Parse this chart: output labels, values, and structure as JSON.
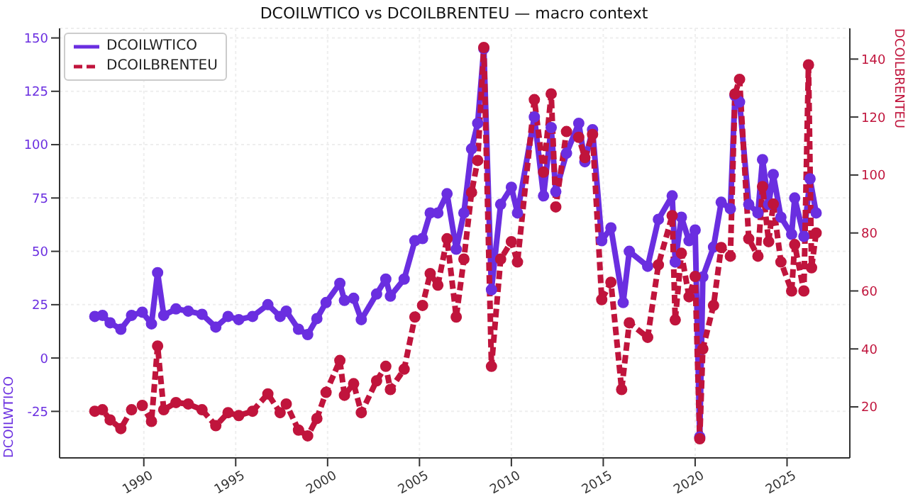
{
  "chart_data": {
    "type": "line",
    "title": "DCOILWTICO vs DCOILBRENTEU — macro context",
    "ylabel": "DCOILWTICO",
    "y2label": "DCOILBRENTEU",
    "xlim": [
      "1985-06",
      "2028-06"
    ],
    "xticks": [
      "1990",
      "1995",
      "2000",
      "2005",
      "2010",
      "2015",
      "2020",
      "2025"
    ],
    "ylim": [
      -46.8,
      154.5
    ],
    "yticks": [
      -25,
      0,
      25,
      50,
      75,
      100,
      125,
      150
    ],
    "y2lim": [
      2.4,
      150.6
    ],
    "y2ticks": [
      20,
      40,
      60,
      80,
      100,
      120,
      140
    ],
    "grid": true,
    "legend": "top left",
    "marker": "circle",
    "series": [
      {
        "name": "DCOILWTICO",
        "color": "#6a2ee0",
        "line_style": "solid",
        "x": [
          "1987-05",
          "1987-10",
          "1988-03",
          "1988-10",
          "1989-05",
          "1989-12",
          "1990-06",
          "1990-10",
          "1991-02",
          "1991-10",
          "1992-06",
          "1993-03",
          "1993-12",
          "1994-08",
          "1995-03",
          "1995-12",
          "1996-10",
          "1997-06",
          "1997-10",
          "1998-06",
          "1998-12",
          "1999-06",
          "1999-12",
          "2000-09",
          "2000-12",
          "2001-06",
          "2001-11",
          "2002-09",
          "2003-03",
          "2003-06",
          "2004-03",
          "2004-10",
          "2005-03",
          "2005-08",
          "2006-01",
          "2006-07",
          "2007-01",
          "2007-06",
          "2007-11",
          "2008-03",
          "2008-07",
          "2008-12",
          "2009-06",
          "2010-01",
          "2010-05",
          "2011-04",
          "2011-10",
          "2012-03",
          "2012-06",
          "2013-01",
          "2013-09",
          "2014-01",
          "2014-06",
          "2014-12",
          "2015-06",
          "2016-02",
          "2016-06",
          "2017-06",
          "2018-01",
          "2018-10",
          "2018-12",
          "2019-04",
          "2019-09",
          "2020-01",
          "2020-04",
          "2020-06",
          "2021-01",
          "2021-06",
          "2021-12",
          "2022-03",
          "2022-06",
          "2022-12",
          "2023-06",
          "2023-09",
          "2024-01",
          "2024-04",
          "2024-09",
          "2025-04",
          "2025-06",
          "2025-12",
          "2026-04",
          "2026-08"
        ],
        "values": [
          19.5,
          20,
          16.5,
          13.5,
          20,
          21.5,
          16,
          40,
          20,
          23,
          22,
          20.5,
          14.5,
          19.5,
          18,
          19.5,
          25,
          19.5,
          22,
          13.5,
          11,
          18.5,
          26,
          35,
          27,
          28,
          18,
          30,
          37,
          29,
          37,
          55,
          56,
          68,
          68,
          77,
          51,
          68,
          98,
          110,
          145,
          32,
          72,
          80,
          68,
          113,
          76,
          108,
          78,
          96,
          110,
          92,
          107,
          55,
          61,
          26,
          50,
          43,
          65,
          76,
          45,
          66,
          55,
          60,
          -37,
          38,
          52,
          73,
          70,
          123,
          120,
          72,
          68,
          93,
          72,
          86,
          66,
          58,
          75,
          57,
          84,
          68
        ]
      },
      {
        "name": "DCOILBRENTEU",
        "color": "#c0143c",
        "line_style": "dashed",
        "axis": "y2",
        "x": [
          "1987-05",
          "1987-10",
          "1988-03",
          "1988-10",
          "1989-05",
          "1989-12",
          "1990-06",
          "1990-10",
          "1991-02",
          "1991-10",
          "1992-06",
          "1993-03",
          "1993-12",
          "1994-08",
          "1995-03",
          "1995-12",
          "1996-10",
          "1997-06",
          "1997-10",
          "1998-06",
          "1998-12",
          "1999-06",
          "1999-12",
          "2000-09",
          "2000-12",
          "2001-06",
          "2001-11",
          "2002-09",
          "2003-03",
          "2003-06",
          "2004-03",
          "2004-10",
          "2005-03",
          "2005-08",
          "2006-01",
          "2006-07",
          "2007-01",
          "2007-06",
          "2007-11",
          "2008-03",
          "2008-07",
          "2008-12",
          "2009-06",
          "2010-01",
          "2010-05",
          "2011-04",
          "2011-10",
          "2012-03",
          "2012-06",
          "2013-01",
          "2013-09",
          "2014-01",
          "2014-06",
          "2014-12",
          "2015-06",
          "2016-01",
          "2016-06",
          "2017-06",
          "2018-01",
          "2018-10",
          "2018-12",
          "2019-04",
          "2019-09",
          "2020-01",
          "2020-04",
          "2020-06",
          "2021-01",
          "2021-06",
          "2021-12",
          "2022-03",
          "2022-06",
          "2022-12",
          "2023-06",
          "2023-09",
          "2024-01",
          "2024-04",
          "2024-09",
          "2025-04",
          "2025-06",
          "2025-12",
          "2026-03",
          "2026-05",
          "2026-08"
        ],
        "values": [
          18.5,
          19,
          15.5,
          12.5,
          19,
          20.5,
          15,
          41,
          19,
          21.5,
          21,
          19,
          13.5,
          18,
          17,
          18.5,
          24.5,
          18,
          21,
          12,
          10,
          16,
          25,
          36,
          24,
          28,
          18,
          29,
          34,
          26,
          33,
          51,
          55,
          66,
          62,
          78,
          51,
          71,
          94,
          105,
          144,
          34,
          71,
          77,
          70,
          126,
          101,
          128,
          89,
          115,
          113,
          106,
          114,
          57,
          63,
          26,
          49,
          44,
          69,
          86,
          50,
          73,
          58,
          65,
          9,
          40,
          55,
          75,
          72,
          128,
          133,
          78,
          72,
          96,
          77,
          90,
          70,
          60,
          76,
          60,
          138,
          68,
          80
        ]
      }
    ]
  }
}
